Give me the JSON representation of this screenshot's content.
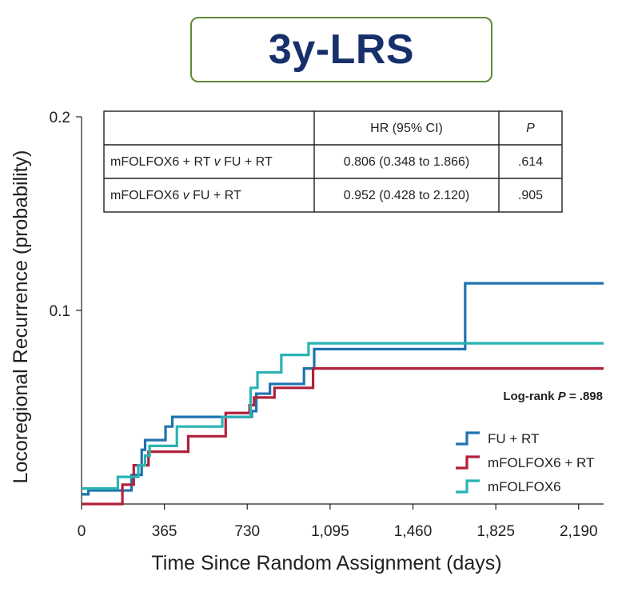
{
  "header": {
    "title": "3y-LRS"
  },
  "chart_data": {
    "type": "line",
    "subtype": "kaplan-meier-step",
    "xlabel": "Time Since Random Assignment (days)",
    "ylabel": "Locoregional Recurrence (probability)",
    "xlim": [
      0,
      2300
    ],
    "ylim": [
      0,
      0.2
    ],
    "x_ticks": [
      0,
      365,
      730,
      1095,
      1460,
      1825,
      2190
    ],
    "x_tick_labels": [
      "0",
      "365",
      "730",
      "1,095",
      "1,460",
      "1,825",
      "2,190"
    ],
    "y_ticks": [
      0.1,
      0.2
    ],
    "y_tick_labels": [
      "0.1",
      "0.2"
    ],
    "grid": false,
    "legend_position": "bottom-right",
    "series": [
      {
        "name": "FU + RT",
        "color": "#1e73b0",
        "step_x": [
          0,
          30,
          220,
          265,
          280,
          370,
          400,
          750,
          770,
          830,
          980,
          1025,
          1690,
          2300
        ],
        "step_y": [
          0.005,
          0.007,
          0.015,
          0.028,
          0.033,
          0.04,
          0.045,
          0.048,
          0.057,
          0.062,
          0.07,
          0.08,
          0.114,
          0.114
        ]
      },
      {
        "name": "mFOLFOX6 + RT",
        "color": "#b0203a",
        "step_x": [
          0,
          180,
          230,
          295,
          470,
          635,
          740,
          760,
          850,
          1020,
          2300
        ],
        "step_y": [
          0.0,
          0.01,
          0.02,
          0.027,
          0.035,
          0.047,
          0.051,
          0.055,
          0.06,
          0.07,
          0.07
        ]
      },
      {
        "name": "mFOLFOX6",
        "color": "#2ab3b3",
        "step_x": [
          0,
          10,
          160,
          250,
          280,
          300,
          420,
          620,
          745,
          775,
          880,
          1000,
          2300
        ],
        "step_y": [
          0.008,
          0.008,
          0.014,
          0.02,
          0.025,
          0.03,
          0.04,
          0.045,
          0.06,
          0.068,
          0.077,
          0.083,
          0.083
        ]
      }
    ],
    "annotation": {
      "prefix": "Log-rank ",
      "p": "P",
      "suffix": " = .898"
    },
    "inset_table": {
      "columns": [
        "",
        "HR (95% CI)",
        "P"
      ],
      "rows": [
        {
          "comparison": "mFOLFOX6 + RT v FU + RT",
          "hr": "0.806 (0.348 to 1.866)",
          "p": ".614"
        },
        {
          "comparison": "mFOLFOX6 v FU + RT",
          "hr": "0.952 (0.428 to 2.120)",
          "p": ".905"
        }
      ]
    }
  }
}
